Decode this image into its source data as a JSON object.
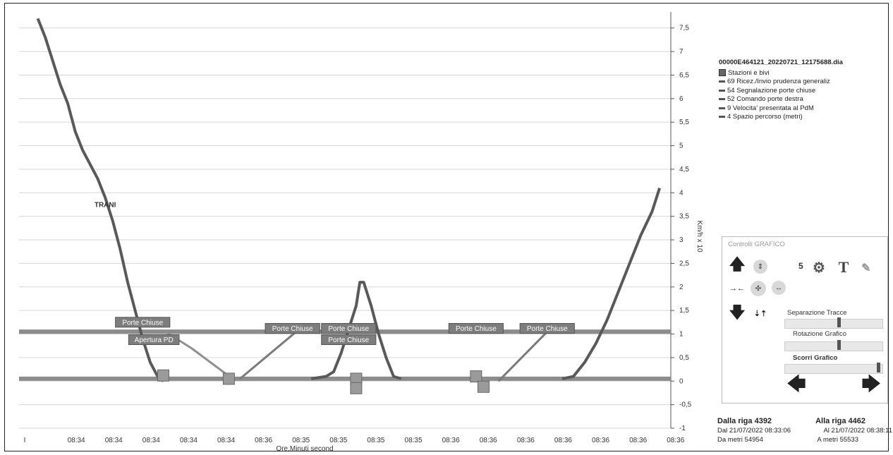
{
  "chart_data": {
    "type": "line",
    "ylabel": "Km/h x 10",
    "xlabel": "Ore.Minuti second",
    "ylim": [
      -1,
      7.75
    ],
    "yticks": [
      "7,5",
      "7",
      "6,5",
      "6",
      "5,5",
      "5",
      "4,5",
      "4",
      "3,5",
      "3",
      "2,5",
      "2",
      "1,5",
      "1",
      "0,5",
      "0",
      "-0,5",
      "-1"
    ],
    "ytick_values": [
      7.5,
      7,
      6.5,
      6,
      5.5,
      5,
      4.5,
      4,
      3.5,
      3,
      2.5,
      2,
      1.5,
      1,
      0.5,
      0,
      -0.5,
      -1
    ],
    "x_tick_labels": [
      "I",
      "08:34",
      "08:34",
      "08:34",
      "08:34",
      "08:34",
      "08:36",
      "08:35",
      "08:35",
      "08:35",
      "08:35",
      "08:36",
      "08:36",
      "08:36",
      "08:36",
      "08:36",
      "08:36",
      "08:36"
    ],
    "grid": true,
    "x": [
      0,
      1,
      2,
      3,
      4,
      5,
      6,
      7,
      8,
      9,
      10,
      11,
      12,
      13,
      14,
      15,
      16,
      17
    ],
    "series": [
      {
        "name": "",
        "color": "#595959",
        "x": [
          0.5,
          0.7,
          0.9,
          1.1,
          1.3,
          1.5,
          1.7,
          1.9,
          2.1,
          2.3,
          2.5,
          2.7,
          2.9,
          3.1,
          3.3,
          3.5,
          3.7,
          3.85
        ],
        "y": [
          7.7,
          7.3,
          6.8,
          6.3,
          5.9,
          5.3,
          4.9,
          4.6,
          4.3,
          3.9,
          3.4,
          2.8,
          2.1,
          1.5,
          0.9,
          0.4,
          0.1,
          0
        ]
      },
      {
        "name": "",
        "color": "#595959",
        "x": [
          7.8,
          8.2,
          8.4,
          8.6,
          8.8,
          9.0,
          9.1,
          9.2,
          9.4,
          9.6,
          9.8,
          10.0,
          10.2
        ],
        "y": [
          0.05,
          0.1,
          0.2,
          0.6,
          1.1,
          1.6,
          2.1,
          2.1,
          1.6,
          1.0,
          0.5,
          0.1,
          0.05
        ]
      },
      {
        "name": "",
        "color": "#595959",
        "x": [
          14.5,
          14.8,
          15.1,
          15.4,
          15.7,
          16.0,
          16.3,
          16.6,
          16.9,
          17.1
        ],
        "y": [
          0.05,
          0.1,
          0.4,
          0.8,
          1.3,
          1.9,
          2.5,
          3.1,
          3.6,
          4.1
        ]
      },
      {
        "name": "",
        "color": "#8f8f8f",
        "x": [
          3.9,
          4.6,
          5.7
        ],
        "y": [
          1.05,
          0.7,
          0.05
        ]
      },
      {
        "name": "",
        "color": "#7a7a7a",
        "x": [
          5.9,
          7.4
        ],
        "y": [
          0.05,
          1.05
        ]
      },
      {
        "name": "",
        "color": "#7a7a7a",
        "x": [
          12.8,
          14.1
        ],
        "y": [
          0.0,
          1.05
        ]
      }
    ],
    "reference_lines": [
      {
        "y": 1.05,
        "color": "#8c8c8c"
      },
      {
        "y": 0.05,
        "color": "#8c8c8c"
      }
    ],
    "annotations": [
      {
        "text": "Porte Chiuse",
        "x": 3.3,
        "y": 1.25
      },
      {
        "text": "Apertura PD",
        "x": 3.6,
        "y": 0.88
      },
      {
        "text": "Porte Chiuse",
        "x": 7.3,
        "y": 1.12
      },
      {
        "text": "Porte Chiuse",
        "x": 8.8,
        "y": 1.12
      },
      {
        "text": "Porte Chiuse",
        "x": 8.8,
        "y": 0.88
      },
      {
        "text": "Porte Chiuse",
        "x": 12.2,
        "y": 1.12
      },
      {
        "text": "Porte Chiuse",
        "x": 14.1,
        "y": 1.12
      },
      {
        "text": "TRANI",
        "x": 2.3,
        "y": 3.7,
        "plain": true
      }
    ],
    "markers": [
      {
        "x": 3.85,
        "y": 0.12
      },
      {
        "x": 5.6,
        "y": 0.05
      },
      {
        "x": 9.0,
        "y": 0.05
      },
      {
        "x": 9.0,
        "y": -0.15
      },
      {
        "x": 12.2,
        "y": 0.1
      },
      {
        "x": 12.4,
        "y": -0.12
      }
    ]
  },
  "legend": {
    "file": "00000E464121_20220721_12175688.dia",
    "items": [
      {
        "label": "Stazioni e bivi",
        "box": true
      },
      {
        "label": "69 Ricez./Invio prudenza generaliz"
      },
      {
        "label": "54 Segnalazione porte chiuse"
      },
      {
        "label": "52 Comando porte destra"
      },
      {
        "label": "9 Velocita' presentata al PdM"
      },
      {
        "label": "4 Spazio percorso (metri)"
      }
    ]
  },
  "controls": {
    "title": "Controlli GRAFICO",
    "zoom_value": "5",
    "slider_1": "Separazione Tracce",
    "slider_2": "Rotazione Grafico",
    "slider_3": "Scorri Grafico",
    "slider_1_level": 0.55,
    "slider_2_level": 0.55,
    "slider_3_level": 0.97
  },
  "footer": {
    "from_row": "Dalla riga 4392",
    "to_row": "Alla riga 4462",
    "from_date": "Dal 21/07/2022 08:33:06",
    "to_date": "Al 21/07/2022 08:38:11",
    "from_m": "Da metri 54954",
    "to_m": "A metri 55533"
  }
}
